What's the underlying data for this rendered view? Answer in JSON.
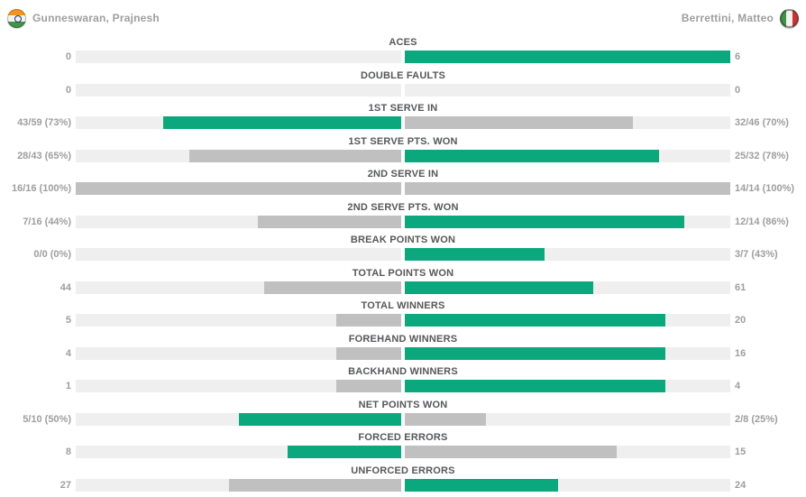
{
  "header": {
    "left_player": {
      "name": "Gunneswaran, Prajnesh",
      "flag_icon": "india-flag-icon"
    },
    "right_player": {
      "name": "Berrettini, Matteo",
      "flag_icon": "italy-flag-icon"
    }
  },
  "chart_data": {
    "type": "bar",
    "subtype": "back-to-back-horizontal-comparison",
    "title": "",
    "players": [
      "Gunneswaran, Prajnesh",
      "Berrettini, Matteo"
    ],
    "bar_colors": {
      "win": "#0ba87d",
      "neutral": "#c0c0c0",
      "track": "#efefef"
    },
    "text_colors": {
      "label": "#565759",
      "value": "#9e9e9e",
      "player_name": "#9e9e9e"
    },
    "rows": [
      {
        "label": "ACES",
        "left": {
          "display": "0",
          "fill": 0.0,
          "result": "loss"
        },
        "right": {
          "display": "6",
          "fill": 1.0,
          "result": "win"
        }
      },
      {
        "label": "DOUBLE FAULTS",
        "left": {
          "display": "0",
          "fill": 0.0,
          "result": "tie"
        },
        "right": {
          "display": "0",
          "fill": 0.0,
          "result": "tie"
        }
      },
      {
        "label": "1ST SERVE IN",
        "left": {
          "display": "43/59 (73%)",
          "fill": 0.73,
          "result": "win"
        },
        "right": {
          "display": "32/46 (70%)",
          "fill": 0.7,
          "result": "loss"
        }
      },
      {
        "label": "1ST SERVE PTS. WON",
        "left": {
          "display": "28/43 (65%)",
          "fill": 0.65,
          "result": "loss"
        },
        "right": {
          "display": "25/32 (78%)",
          "fill": 0.78,
          "result": "win"
        }
      },
      {
        "label": "2ND SERVE IN",
        "left": {
          "display": "16/16 (100%)",
          "fill": 1.0,
          "result": "tie"
        },
        "right": {
          "display": "14/14 (100%)",
          "fill": 1.0,
          "result": "tie"
        }
      },
      {
        "label": "2ND SERVE PTS. WON",
        "left": {
          "display": "7/16 (44%)",
          "fill": 0.44,
          "result": "loss"
        },
        "right": {
          "display": "12/14 (86%)",
          "fill": 0.86,
          "result": "win"
        }
      },
      {
        "label": "BREAK POINTS WON",
        "left": {
          "display": "0/0 (0%)",
          "fill": 0.0,
          "result": "loss"
        },
        "right": {
          "display": "3/7 (43%)",
          "fill": 0.43,
          "result": "win"
        }
      },
      {
        "label": "TOTAL POINTS WON",
        "left": {
          "display": "44",
          "fill": 0.42,
          "result": "loss"
        },
        "right": {
          "display": "61",
          "fill": 0.58,
          "result": "win"
        }
      },
      {
        "label": "TOTAL WINNERS",
        "left": {
          "display": "5",
          "fill": 0.2,
          "result": "loss"
        },
        "right": {
          "display": "20",
          "fill": 0.8,
          "result": "win"
        }
      },
      {
        "label": "FOREHAND WINNERS",
        "left": {
          "display": "4",
          "fill": 0.2,
          "result": "loss"
        },
        "right": {
          "display": "16",
          "fill": 0.8,
          "result": "win"
        }
      },
      {
        "label": "BACKHAND WINNERS",
        "left": {
          "display": "1",
          "fill": 0.2,
          "result": "loss"
        },
        "right": {
          "display": "4",
          "fill": 0.8,
          "result": "win"
        }
      },
      {
        "label": "NET POINTS WON",
        "left": {
          "display": "5/10 (50%)",
          "fill": 0.5,
          "result": "win"
        },
        "right": {
          "display": "2/8 (25%)",
          "fill": 0.25,
          "result": "loss"
        }
      },
      {
        "label": "FORCED ERRORS",
        "left": {
          "display": "8",
          "fill": 0.35,
          "result": "win"
        },
        "right": {
          "display": "15",
          "fill": 0.65,
          "result": "loss"
        }
      },
      {
        "label": "UNFORCED ERRORS",
        "left": {
          "display": "27",
          "fill": 0.53,
          "result": "loss"
        },
        "right": {
          "display": "24",
          "fill": 0.47,
          "result": "win"
        }
      }
    ]
  }
}
